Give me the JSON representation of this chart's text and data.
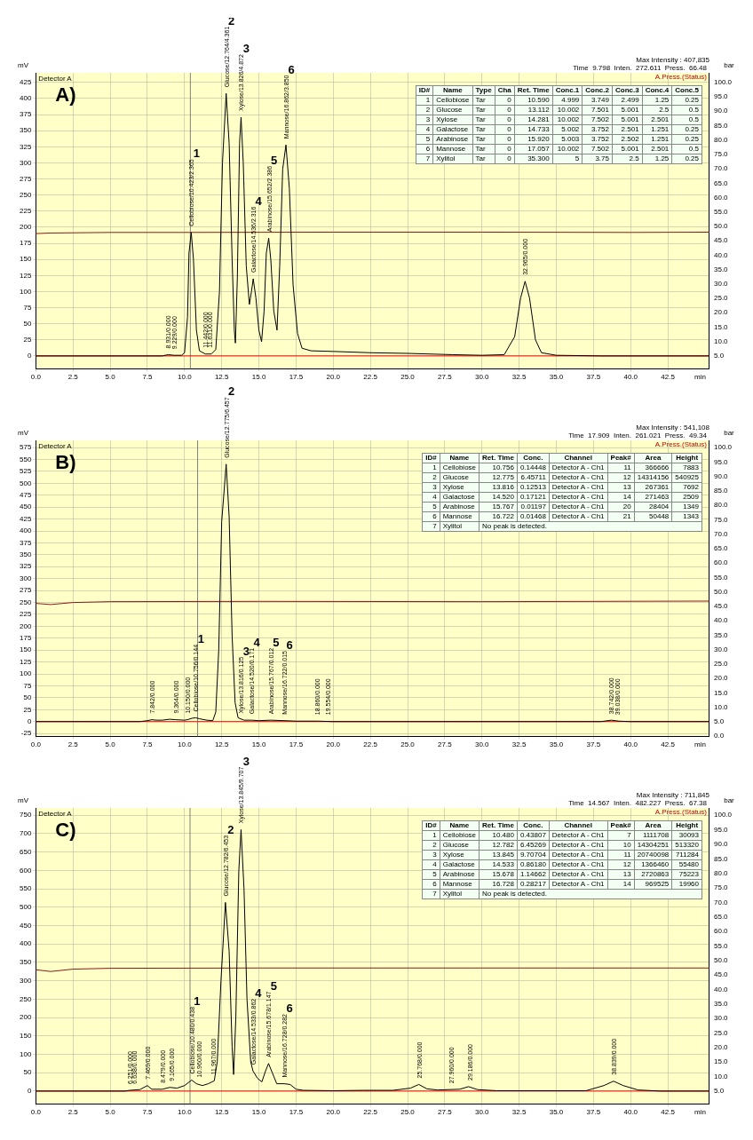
{
  "chart_data": [
    {
      "type": "line",
      "title": "A)",
      "xlabel": "min",
      "ylabel": "mV",
      "y2label": "bar",
      "legend": false,
      "grid": true,
      "marker": "none",
      "line_style": "solid",
      "xlim": [
        0,
        45.3
      ],
      "ylim": [
        -20,
        440
      ],
      "y2lim": [
        0.529,
        103.35
      ],
      "xticks": [
        {
          "value": 0,
          "label": "0.0"
        },
        {
          "value": 2.5,
          "label": "2.5"
        },
        {
          "value": 5,
          "label": "5.0"
        },
        {
          "value": 7.5,
          "label": "7.5"
        },
        {
          "value": 10,
          "label": "10.0"
        },
        {
          "value": 12.5,
          "label": "12.5"
        },
        {
          "value": 15,
          "label": "15.0"
        },
        {
          "value": 17.5,
          "label": "17.5"
        },
        {
          "value": 20,
          "label": "20.0"
        },
        {
          "value": 22.5,
          "label": "22.5"
        },
        {
          "value": 25,
          "label": "25.0"
        },
        {
          "value": 27.5,
          "label": "27.5"
        },
        {
          "value": 30,
          "label": "30.0"
        },
        {
          "value": 32.5,
          "label": "32.5"
        },
        {
          "value": 35,
          "label": "35.0"
        },
        {
          "value": 37.5,
          "label": "37.5"
        },
        {
          "value": 40,
          "label": "40.0"
        },
        {
          "value": 42.5,
          "label": "42.5"
        }
      ],
      "yticks": [
        0,
        25,
        50,
        75,
        100,
        125,
        150,
        175,
        200,
        225,
        250,
        275,
        300,
        325,
        350,
        375,
        400,
        425
      ],
      "y2ticks": [
        {
          "value": 5,
          "label": "5.0"
        },
        {
          "value": 10,
          "label": "10.0"
        },
        {
          "value": 15,
          "label": "15.0"
        },
        {
          "value": 20,
          "label": "20.0"
        },
        {
          "value": 25,
          "label": "25.0"
        },
        {
          "value": 30,
          "label": "30.0"
        },
        {
          "value": 35,
          "label": "35.0"
        },
        {
          "value": 40,
          "label": "40.0"
        },
        {
          "value": 45,
          "label": "45.0"
        },
        {
          "value": 50,
          "label": "50.0"
        },
        {
          "value": 55,
          "label": "55.0"
        },
        {
          "value": 60,
          "label": "60.0"
        },
        {
          "value": 65,
          "label": "65.0"
        },
        {
          "value": 70,
          "label": "70.0"
        },
        {
          "value": 75,
          "label": "75.0"
        },
        {
          "value": 80,
          "label": "80.0"
        },
        {
          "value": 85,
          "label": "85.0"
        },
        {
          "value": 90,
          "label": "90.0"
        },
        {
          "value": 95,
          "label": "95.0"
        },
        {
          "value": 100,
          "label": "100.0"
        }
      ],
      "series": [
        {
          "color": "#000000",
          "x": [
            0,
            8.5,
            8.9,
            9.3,
            9.8,
            10.0,
            10.2,
            10.3,
            10.45,
            10.6,
            10.8,
            11.0,
            11.4,
            11.8,
            12.1,
            12.35,
            12.55,
            12.8,
            13.0,
            13.2,
            13.35,
            13.42,
            13.55,
            13.7,
            13.8,
            13.95,
            14.15,
            14.36,
            14.5,
            14.62,
            14.8,
            15.0,
            15.18,
            15.35,
            15.5,
            15.66,
            15.8,
            16.0,
            16.22,
            16.4,
            16.6,
            16.82,
            17.05,
            17.3,
            17.6,
            17.9,
            18.5,
            20,
            22.5,
            25,
            28,
            30,
            31.5,
            32.2,
            32.6,
            32.9,
            33.2,
            33.6,
            34,
            35,
            38,
            45.3
          ],
          "values": [
            0,
            0,
            2,
            1,
            1,
            5,
            60,
            160,
            192,
            150,
            40,
            8,
            3,
            3,
            10,
            100,
            300,
            408,
            330,
            150,
            40,
            20,
            120,
            330,
            371,
            300,
            140,
            80,
            100,
            120,
            90,
            40,
            22,
            70,
            160,
            183,
            150,
            70,
            40,
            140,
            290,
            328,
            260,
            110,
            35,
            12,
            8,
            7,
            5,
            4,
            2,
            1,
            2,
            30,
            90,
            116,
            90,
            25,
            5,
            1,
            0,
            0
          ]
        },
        {
          "color": "#8b1a1a",
          "axis": "y2",
          "x": [
            0,
            1,
            5,
            10,
            20,
            30,
            40,
            45.3
          ],
          "values": [
            47.5,
            47.7,
            47.9,
            47.9,
            48.0,
            48.0,
            47.9,
            48.0
          ]
        }
      ],
      "ref_lines": [
        {
          "axis": "x",
          "value": 10.39,
          "color": "#808080"
        },
        {
          "axis": "y",
          "value": 0,
          "color": "#ff0000"
        }
      ],
      "annotations": [
        "Detector A",
        "Max Intensity : 407,835",
        "Time  9.798  Inten.  272.611  Press.  66.48",
        "A.Press.(Status)",
        "ID#  Name  Type  Cha  Ret. Time  Conc.1  Conc.2  Conc.3  Conc.4  Conc.5",
        "1  Cellobiose  Tar  0  10.590  4.999  3.749  2.499  1.25  0.25",
        "2  Glucose  Tar  0  13.112  10.002  7.501  5.001  2.5  0.5",
        "3  Xylose  Tar  0  14.281  10.002  7.502  5.001  2.501  0.5",
        "4  Galactose  Tar  0  14.733  5.002  3.752  2.501  1.251  0.25",
        "5  Arabinose  Tar  0  15.920  5.003  3.752  2.502  1.251  0.25",
        "6  Mannose  Tar  0  17.057  10.002  7.502  5.001  2.501  0.5",
        "7  Xylitol  Tar  0  35.300  5  3.75  2.5  1.25  0.25",
        {
          "text": "Cellobiose/10.423/2.365",
          "x": 10.45,
          "y": 192
        },
        {
          "text": "Glucose/12.764/4.361",
          "x": 12.8,
          "y": 408
        },
        {
          "text": "Xylose/13.826/4.872",
          "x": 13.8,
          "y": 371
        },
        {
          "text": "Galactose/14.536/2.316",
          "x": 14.62,
          "y": 120
        },
        {
          "text": "Arabinose/15.652/2.386",
          "x": 15.66,
          "y": 183
        },
        {
          "text": "Mannose/16.862/3.850",
          "x": 16.82,
          "y": 328
        },
        {
          "text": "32.965/0.000",
          "x": 32.9,
          "y": 116
        },
        {
          "text": "8.931/0.000",
          "x": 8.9,
          "y": 2
        },
        {
          "text": "9.229/0.000",
          "x": 9.3,
          "y": 1
        },
        {
          "text": "11.442/0.000",
          "x": 11.4,
          "y": 3
        },
        {
          "text": "11.631/0.000",
          "x": 11.7,
          "y": 3
        },
        "1",
        "2",
        "3",
        "4",
        "5",
        "6"
      ]
    },
    {
      "type": "line",
      "title": "B)",
      "xlabel": "min",
      "ylabel": "mV",
      "y2label": "bar",
      "legend": false,
      "grid": true,
      "marker": "none",
      "line_style": "solid",
      "xlim": [
        0,
        45.3
      ],
      "ylim": [
        -31,
        590
      ],
      "y2lim": [
        -0.1,
        102.5
      ],
      "xticks": [
        {
          "value": 0,
          "label": "0.0"
        },
        {
          "value": 2.5,
          "label": "2.5"
        },
        {
          "value": 5,
          "label": "5.0"
        },
        {
          "value": 7.5,
          "label": "7.5"
        },
        {
          "value": 10,
          "label": "10.0"
        },
        {
          "value": 12.5,
          "label": "12.5"
        },
        {
          "value": 15,
          "label": "15.0"
        },
        {
          "value": 17.5,
          "label": "17.5"
        },
        {
          "value": 20,
          "label": "20.0"
        },
        {
          "value": 22.5,
          "label": "22.5"
        },
        {
          "value": 25,
          "label": "25.0"
        },
        {
          "value": 27.5,
          "label": "27.5"
        },
        {
          "value": 30,
          "label": "30.0"
        },
        {
          "value": 32.5,
          "label": "32.5"
        },
        {
          "value": 35,
          "label": "35.0"
        },
        {
          "value": 37.5,
          "label": "37.5"
        },
        {
          "value": 40,
          "label": "40.0"
        },
        {
          "value": 42.5,
          "label": "42.5"
        }
      ],
      "yticks": [
        -25,
        0,
        25,
        50,
        75,
        100,
        125,
        150,
        175,
        200,
        225,
        250,
        275,
        300,
        325,
        350,
        375,
        400,
        425,
        450,
        475,
        500,
        525,
        550,
        575
      ],
      "y2ticks": [
        {
          "value": 0,
          "label": "0.0"
        },
        {
          "value": 5,
          "label": "5.0"
        },
        {
          "value": 10,
          "label": "10.0"
        },
        {
          "value": 15,
          "label": "15.0"
        },
        {
          "value": 20,
          "label": "20.0"
        },
        {
          "value": 25,
          "label": "25.0"
        },
        {
          "value": 30,
          "label": "30.0"
        },
        {
          "value": 35,
          "label": "35.0"
        },
        {
          "value": 40,
          "label": "40.0"
        },
        {
          "value": 45,
          "label": "45.0"
        },
        {
          "value": 50,
          "label": "50.0"
        },
        {
          "value": 55,
          "label": "55.0"
        },
        {
          "value": 60,
          "label": "60.0"
        },
        {
          "value": 65,
          "label": "65.0"
        },
        {
          "value": 70,
          "label": "70.0"
        },
        {
          "value": 75,
          "label": "75.0"
        },
        {
          "value": 80,
          "label": "80.0"
        },
        {
          "value": 85,
          "label": "85.0"
        },
        {
          "value": 90,
          "label": "90.0"
        },
        {
          "value": 95,
          "label": "95.0"
        },
        {
          "value": 100,
          "label": "100.0"
        }
      ],
      "series": [
        {
          "color": "#000000",
          "x": [
            0,
            7,
            7.5,
            7.8,
            8.1,
            8.5,
            9,
            9.4,
            10,
            10.2,
            10.5,
            10.75,
            11,
            11.5,
            11.9,
            12.1,
            12.3,
            12.5,
            12.8,
            13.0,
            13.2,
            13.4,
            13.6,
            14,
            14.5,
            15,
            15.8,
            16.7,
            17.5,
            19,
            20,
            38,
            38.7,
            39.2,
            40,
            45.3
          ],
          "values": [
            0,
            0,
            2,
            4,
            3,
            3,
            5,
            4,
            3,
            4,
            7,
            8,
            6,
            3,
            2,
            20,
            150,
            420,
            540,
            430,
            180,
            40,
            8,
            3,
            3,
            2,
            3,
            2,
            1,
            1,
            0,
            0,
            3,
            1,
            0,
            0
          ]
        },
        {
          "color": "#8b1a1a",
          "axis": "y2",
          "x": [
            0,
            1,
            2.5,
            5,
            15,
            30,
            45.3
          ],
          "values": [
            46.0,
            45.6,
            46.3,
            46.6,
            46.7,
            46.6,
            46.8
          ]
        }
      ],
      "ref_lines": [
        {
          "axis": "x",
          "value": 10.88,
          "color": "#808080"
        },
        {
          "axis": "y",
          "value": 0,
          "color": "#ff0000"
        }
      ],
      "annotations": [
        "Detector A",
        "Max Intensity : 541,108",
        "Time  17.909  Inten.  261.021  Press.  49.34",
        "A.Press.(Status)",
        "ID#  Name  Ret. Time  Conc.  Channel  Peak#  Area  Height",
        "1  Cellobiose  10.756  0.14448  Detector A - Ch1  11  366666  7883",
        "2  Glucose  12.775  6.45711  Detector A - Ch1  12  14314156  540925",
        "3  Xylose  13.816  0.12513  Detector A - Ch1  13  267361  7692",
        "4  Galactose  14.520  0.17121  Detector A - Ch1  14  271463  2509",
        "5  Arabinose  15.767  0.01197  Detector A - Ch1  20  28404  1349",
        "6  Mannose  16.722  0.01468  Detector A - Ch1  21  50448  1343",
        "7  Xylitol  No peak is detected.",
        {
          "text": "Cellobiose/10.756/0.144",
          "x": 10.75,
          "y": 8
        },
        {
          "text": "Glucose/12.775/6.457",
          "x": 12.8,
          "y": 540
        },
        {
          "text": "Xylose/13.816/0.125",
          "x": 13.8,
          "y": 4
        },
        {
          "text": "Galactose/14.520/0.171",
          "x": 14.5,
          "y": 3
        },
        {
          "text": "Arabinose/15.767/0.012",
          "x": 15.8,
          "y": 3
        },
        {
          "text": "Mannose/16.722/0.015",
          "x": 16.7,
          "y": 2
        },
        {
          "text": "7.842/0.000",
          "x": 7.8,
          "y": 4
        },
        {
          "text": "9.364/0.000",
          "x": 9.4,
          "y": 4
        },
        {
          "text": "10.150/0.000",
          "x": 10.2,
          "y": 4
        },
        {
          "text": "18.860/0.000",
          "x": 18.9,
          "y": 1
        },
        {
          "text": "19.554/0.000",
          "x": 19.6,
          "y": 1
        },
        {
          "text": "38.742/0.000",
          "x": 38.7,
          "y": 3
        },
        {
          "text": "39.038/0.000",
          "x": 39.1,
          "y": 1
        },
        "1",
        "2",
        "3",
        "4",
        "5",
        "6"
      ]
    },
    {
      "type": "line",
      "title": "C)",
      "xlabel": "min",
      "ylabel": "mV",
      "y2label": "bar",
      "legend": false,
      "grid": true,
      "marker": "none",
      "line_style": "solid",
      "xlim": [
        0,
        45.3
      ],
      "ylim": [
        -35,
        770
      ],
      "y2lim": [
        0.567,
        102.53
      ],
      "xticks": [
        {
          "value": 0,
          "label": "0.0"
        },
        {
          "value": 2.5,
          "label": "2.5"
        },
        {
          "value": 5,
          "label": "5.0"
        },
        {
          "value": 7.5,
          "label": "7.5"
        },
        {
          "value": 10,
          "label": "10.0"
        },
        {
          "value": 12.5,
          "label": "12.5"
        },
        {
          "value": 15,
          "label": "15.0"
        },
        {
          "value": 17.5,
          "label": "17.5"
        },
        {
          "value": 20,
          "label": "20.0"
        },
        {
          "value": 22.5,
          "label": "22.5"
        },
        {
          "value": 25,
          "label": "25.0"
        },
        {
          "value": 27.5,
          "label": "27.5"
        },
        {
          "value": 30,
          "label": "30.0"
        },
        {
          "value": 32.5,
          "label": "32.5"
        },
        {
          "value": 35,
          "label": "35.0"
        },
        {
          "value": 37.5,
          "label": "37.5"
        },
        {
          "value": 40,
          "label": "40.0"
        },
        {
          "value": 42.5,
          "label": "42.5"
        }
      ],
      "yticks": [
        0,
        50,
        100,
        150,
        200,
        250,
        300,
        350,
        400,
        450,
        500,
        550,
        600,
        650,
        700,
        750
      ],
      "y2ticks": [
        {
          "value": 5,
          "label": "5.0"
        },
        {
          "value": 10,
          "label": "10.0"
        },
        {
          "value": 15,
          "label": "15.0"
        },
        {
          "value": 20,
          "label": "20.0"
        },
        {
          "value": 25,
          "label": "25.0"
        },
        {
          "value": 30,
          "label": "30.0"
        },
        {
          "value": 35,
          "label": "35.0"
        },
        {
          "value": 40,
          "label": "40.0"
        },
        {
          "value": 45,
          "label": "45.0"
        },
        {
          "value": 50,
          "label": "50.0"
        },
        {
          "value": 55,
          "label": "55.0"
        },
        {
          "value": 60,
          "label": "60.0"
        },
        {
          "value": 65,
          "label": "65.0"
        },
        {
          "value": 70,
          "label": "70.0"
        },
        {
          "value": 75,
          "label": "75.0"
        },
        {
          "value": 80,
          "label": "80.0"
        },
        {
          "value": 85,
          "label": "85.0"
        },
        {
          "value": 90,
          "label": "90.0"
        },
        {
          "value": 95,
          "label": "95.0"
        },
        {
          "value": 100,
          "label": "100.0"
        }
      ],
      "series": [
        {
          "color": "#000000",
          "x": [
            0,
            6,
            6.3,
            6.6,
            7,
            7.5,
            7.8,
            8.5,
            9,
            9.5,
            10,
            10.48,
            10.8,
            11.2,
            11.6,
            12,
            12.2,
            12.45,
            12.75,
            13.0,
            13.2,
            13.3,
            13.45,
            13.65,
            13.8,
            14.0,
            14.2,
            14.45,
            14.6,
            14.9,
            15.2,
            15.45,
            15.65,
            15.9,
            16.2,
            16.7,
            17.1,
            17.5,
            18,
            20,
            22,
            24,
            25.2,
            25.75,
            26.3,
            27,
            28.5,
            29.1,
            29.7,
            31,
            37,
            38.2,
            38.85,
            39.5,
            40.5,
            42,
            45.3
          ],
          "values": [
            0,
            0,
            2,
            3,
            4,
            15,
            5,
            5,
            10,
            8,
            15,
            30,
            20,
            15,
            20,
            28,
            80,
            300,
            513,
            380,
            120,
            45,
            200,
            600,
            711,
            550,
            250,
            80,
            55,
            35,
            25,
            55,
            75,
            50,
            20,
            20,
            18,
            5,
            2,
            1,
            2,
            2,
            8,
            18,
            6,
            3,
            5,
            12,
            4,
            1,
            1,
            15,
            27,
            15,
            3,
            0,
            0
          ]
        },
        {
          "color": "#8b1a1a",
          "axis": "y2",
          "x": [
            0,
            1,
            2.5,
            5,
            15,
            30,
            45.3
          ],
          "values": [
            46.8,
            46.2,
            47.0,
            47.3,
            47.4,
            47.4,
            47.4
          ]
        }
      ],
      "ref_lines": [
        {
          "axis": "x",
          "value": 10.37,
          "color": "#808080"
        },
        {
          "axis": "y",
          "value": 0,
          "color": "#ff0000"
        }
      ],
      "annotations": [
        "Detector A",
        "Max Intensity : 711,845",
        "Time  14.567  Inten.  482.227  Press.  67.38",
        "A.Press.(Status)",
        "ID#  Name  Ret. Time  Conc.  Channel  Peak#  Area  Height",
        "1  Cellobiose  10.480  0.43807  Detector A - Ch1  7  1111708  30093",
        "2  Glucose  12.782  6.45269  Detector A - Ch1  10  14304251  513320",
        "3  Xylose  13.845  9.70704  Detector A - Ch1  11  20740098  711284",
        "4  Galactose  14.533  0.86180  Detector A - Ch1  12  1366460  55480",
        "5  Arabinose  15.678  1.14662  Detector A - Ch1  13  2720863  75223",
        "6  Mannose  16.728  0.28217  Detector A - Ch1  14  969525  19960",
        "7  Xylitol  No peak is detected.",
        {
          "text": "Cellobiose/10.480/0.438",
          "x": 10.48,
          "y": 30
        },
        {
          "text": "Glucose/12.782/6.453",
          "x": 12.75,
          "y": 513
        },
        {
          "text": "Xylose/13.845/9.707",
          "x": 13.8,
          "y": 711
        },
        {
          "text": "Galactose/14.533/0.862",
          "x": 14.6,
          "y": 55
        },
        {
          "text": "Arabinose/15.678/1.147",
          "x": 15.65,
          "y": 75
        },
        {
          "text": "Mannose/16.728/0.282",
          "x": 16.7,
          "y": 20
        },
        {
          "text": "6.251/0.000",
          "x": 6.3,
          "y": 2
        },
        {
          "text": "6.638/0.000",
          "x": 6.6,
          "y": 3
        },
        {
          "text": "7.469/0.000",
          "x": 7.5,
          "y": 15
        },
        {
          "text": "8.479/0.000",
          "x": 8.5,
          "y": 5
        },
        {
          "text": "9.165/0.000",
          "x": 9.1,
          "y": 10
        },
        {
          "text": "10.960/0.000",
          "x": 10.95,
          "y": 20
        },
        {
          "text": "11.967/0.000",
          "x": 11.95,
          "y": 28
        },
        {
          "text": "25.768/0.000",
          "x": 25.75,
          "y": 18
        },
        {
          "text": "27.960/0.000",
          "x": 27.95,
          "y": 4
        },
        {
          "text": "29.186/0.000",
          "x": 29.15,
          "y": 12
        },
        {
          "text": "38.839/0.000",
          "x": 38.85,
          "y": 27
        },
        "1",
        "2",
        "3",
        "4",
        "5",
        "6"
      ]
    }
  ]
}
